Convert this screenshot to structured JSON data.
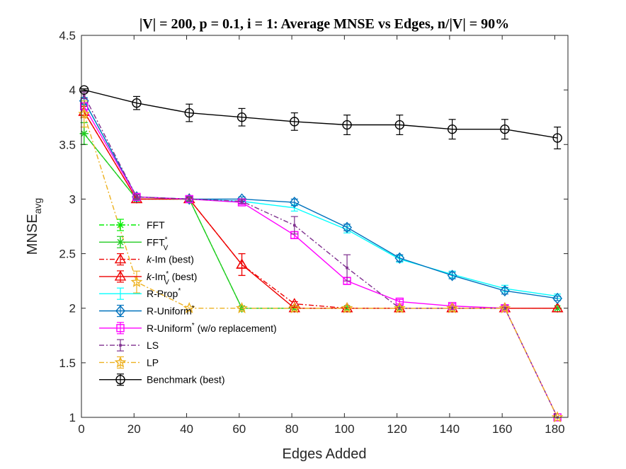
{
  "chart_data": {
    "type": "line",
    "title": "|V| = 200, p = 0.1, i = 1: Average MNSE vs Edges, n/|V| = 90%",
    "xlabel": "Edges Added",
    "ylabel_main": "MNSE",
    "ylabel_sub": "avg",
    "xlim": [
      0,
      185
    ],
    "ylim": [
      1,
      4.5
    ],
    "xticks": [
      0,
      20,
      40,
      60,
      80,
      100,
      120,
      140,
      160,
      180
    ],
    "yticks": [
      1,
      1.5,
      2,
      2.5,
      3,
      3.5,
      4,
      4.5
    ],
    "xtick_labels": [
      "0",
      "20",
      "40",
      "60",
      "80",
      "100",
      "120",
      "140",
      "160",
      "180"
    ],
    "ytick_labels": [
      "1",
      "1.5",
      "2",
      "2.5",
      "3",
      "3.5",
      "4",
      "4.5"
    ],
    "legend_position": "left-inside",
    "series": [
      {
        "key": "fft",
        "legend": [
          "FFT",
          ""
        ],
        "color": "#00ee00",
        "dash": "7,3,2,3",
        "marker": "asterisk",
        "x": [
          1,
          21,
          41,
          61,
          81,
          101,
          121,
          141,
          161,
          181
        ],
        "y": [
          3.6,
          3.0,
          3.0,
          2.0,
          2.0,
          2.0,
          2.0,
          2.0,
          2.0,
          2.0
        ],
        "err": [
          0.1,
          0,
          0,
          0,
          0,
          0,
          0,
          0,
          0,
          0
        ]
      },
      {
        "key": "fftv",
        "legend": [
          "FFT",
          "*",
          "V",
          ""
        ],
        "color": "#22cc22",
        "dash": "",
        "marker": "asterisk",
        "x": [
          1,
          21,
          41,
          61,
          81,
          101,
          121,
          141,
          161,
          181
        ],
        "y": [
          3.6,
          3.0,
          3.0,
          2.0,
          2.0,
          2.0,
          2.0,
          2.0,
          2.0,
          2.0
        ],
        "err": [
          0.1,
          0,
          0,
          0,
          0,
          0,
          0,
          0,
          0,
          0
        ]
      },
      {
        "key": "kim",
        "legend": [
          "k",
          "-Im (best)"
        ],
        "color": "#ee0000",
        "dash": "7,3,2,3",
        "marker": "triangle",
        "x": [
          1,
          21,
          41,
          61,
          81,
          101,
          121,
          141,
          161,
          181
        ],
        "y": [
          3.8,
          3.0,
          3.0,
          2.4,
          2.04,
          2.0,
          2.0,
          2.0,
          2.0,
          2.0
        ],
        "err": [
          0.05,
          0,
          0,
          0.1,
          0.02,
          0,
          0,
          0,
          0,
          0
        ]
      },
      {
        "key": "kimv",
        "legend": [
          "k",
          "-Im",
          "*",
          "V",
          " (best)"
        ],
        "color": "#ee0000",
        "dash": "",
        "marker": "triangle",
        "x": [
          1,
          21,
          41,
          61,
          81,
          101,
          121,
          141,
          161,
          181
        ],
        "y": [
          3.8,
          3.0,
          3.0,
          2.4,
          2.0,
          2.0,
          2.0,
          2.0,
          2.0,
          2.0
        ],
        "err": [
          0.05,
          0,
          0,
          0.1,
          0,
          0,
          0,
          0,
          0,
          0
        ]
      },
      {
        "key": "rprop",
        "legend": [
          "R-Prop",
          "*"
        ],
        "color": "#00ffff",
        "dash": "",
        "marker": "none",
        "x": [
          1,
          21,
          41,
          61,
          81,
          101,
          121,
          141,
          161,
          181
        ],
        "y": [
          3.9,
          3.02,
          3.0,
          2.98,
          2.92,
          2.72,
          2.45,
          2.31,
          2.18,
          2.11
        ],
        "err": [
          0.03,
          0.02,
          0.02,
          0.02,
          0.03,
          0.03,
          0.03,
          0.03,
          0.03,
          0.02
        ]
      },
      {
        "key": "runiform",
        "legend": [
          "R-Uniform",
          "*"
        ],
        "color": "#0072bd",
        "dash": "",
        "marker": "diamond",
        "x": [
          1,
          21,
          41,
          61,
          81,
          101,
          121,
          141,
          161,
          181
        ],
        "y": [
          3.9,
          3.02,
          3.0,
          3.0,
          2.97,
          2.74,
          2.46,
          2.3,
          2.16,
          2.09
        ],
        "err": [
          0.03,
          0.02,
          0.02,
          0.02,
          0.03,
          0.03,
          0.03,
          0.03,
          0.03,
          0.02
        ]
      },
      {
        "key": "runiformwo",
        "legend": [
          "R-Uniform",
          "*",
          " (w/o replacement)"
        ],
        "color": "#ff00ff",
        "dash": "",
        "marker": "square",
        "x": [
          1,
          21,
          41,
          61,
          81,
          101,
          121,
          141,
          161,
          181
        ],
        "y": [
          3.85,
          3.02,
          3.0,
          2.97,
          2.67,
          2.25,
          2.06,
          2.02,
          2.0,
          1.0
        ],
        "err": [
          0.03,
          0.02,
          0.02,
          0.02,
          0.03,
          0.03,
          0.02,
          0.02,
          0.02,
          0
        ]
      },
      {
        "key": "ls",
        "legend": [
          "LS",
          ""
        ],
        "color": "#7e2f8e",
        "dash": "7,3,2,3",
        "marker": "dot",
        "x": [
          1,
          21,
          41,
          61,
          81,
          101,
          121,
          141,
          161,
          181
        ],
        "y": [
          3.95,
          3.02,
          3.0,
          2.98,
          2.76,
          2.37,
          2.0,
          2.0,
          2.0,
          1.0
        ],
        "err": [
          0.03,
          0.02,
          0.02,
          0.02,
          0.08,
          0.12,
          0,
          0,
          0,
          0
        ]
      },
      {
        "key": "lp",
        "legend": [
          "LP",
          ""
        ],
        "color": "#edb120",
        "dash": "7,3,2,3",
        "marker": "star",
        "x": [
          1,
          21,
          41,
          61,
          81,
          101,
          121,
          141,
          161,
          181
        ],
        "y": [
          3.78,
          2.24,
          2.0,
          2.0,
          2.0,
          2.0,
          2.0,
          2.0,
          2.0,
          1.0
        ],
        "err": [
          0.12,
          0.1,
          0,
          0,
          0,
          0,
          0,
          0,
          0,
          0
        ]
      },
      {
        "key": "bench",
        "legend": [
          "Benchmark (best)",
          ""
        ],
        "color": "#000000",
        "dash": "",
        "marker": "circle",
        "x": [
          1,
          21,
          41,
          61,
          81,
          101,
          121,
          141,
          161,
          181
        ],
        "y": [
          4.0,
          3.88,
          3.79,
          3.75,
          3.71,
          3.68,
          3.68,
          3.64,
          3.64,
          3.56
        ],
        "err": [
          0.01,
          0.06,
          0.08,
          0.08,
          0.08,
          0.09,
          0.09,
          0.09,
          0.09,
          0.1
        ]
      }
    ]
  }
}
